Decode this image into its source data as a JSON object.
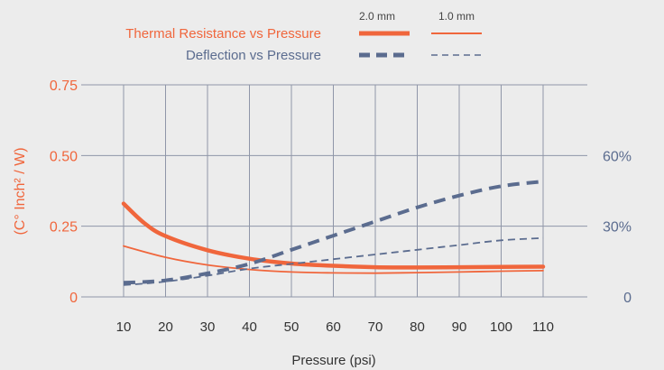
{
  "chart_data": {
    "type": "line",
    "xlabel": "Pressure (psi)",
    "ylabel": "(C° Inch² / W)",
    "x_ticks": [
      "10",
      "20",
      "30",
      "40",
      "50",
      "60",
      "70",
      "80",
      "90",
      "100",
      "110"
    ],
    "x_min": 0,
    "x_max": 110,
    "ylim_left": [
      0,
      0.75
    ],
    "y_ticks_left": [
      {
        "value": 0,
        "label": "0"
      },
      {
        "value": 0.25,
        "label": "0.25"
      },
      {
        "value": 0.5,
        "label": "0.50"
      },
      {
        "value": 0.75,
        "label": "0.75"
      }
    ],
    "ylim_right": [
      0,
      0.9
    ],
    "y_ticks_right": [
      {
        "value": 0,
        "label": "0"
      },
      {
        "value": 0.3,
        "label": "30%"
      },
      {
        "value": 0.6,
        "label": "60%"
      }
    ],
    "grid": true,
    "legend": {
      "placement": "top",
      "col_headers": [
        "2.0 mm",
        "1.0 mm"
      ],
      "rows": [
        {
          "label": "Thermal Resistance vs Pressure",
          "color": "#f0663c"
        },
        {
          "label": "Deflection vs Pressure",
          "color": "#5b6c8f"
        }
      ]
    },
    "series": [
      {
        "group": "Thermal Resistance vs Pressure",
        "thickness": "2.0 mm",
        "axis": "left",
        "color": "#f0663c",
        "dash": false,
        "x": [
          10,
          15,
          20,
          30,
          40,
          50,
          60,
          70,
          80,
          90,
          100,
          110
        ],
        "y": [
          0.33,
          0.26,
          0.215,
          0.165,
          0.135,
          0.118,
          0.11,
          0.105,
          0.104,
          0.105,
          0.106,
          0.107
        ]
      },
      {
        "group": "Thermal Resistance vs Pressure",
        "thickness": "1.0 mm",
        "axis": "left",
        "color": "#f0663c",
        "dash": false,
        "x": [
          10,
          20,
          30,
          40,
          50,
          60,
          70,
          80,
          90,
          100,
          110
        ],
        "y": [
          0.18,
          0.14,
          0.113,
          0.097,
          0.088,
          0.085,
          0.084,
          0.086,
          0.088,
          0.091,
          0.093
        ]
      },
      {
        "group": "Deflection vs Pressure",
        "thickness": "2.0 mm",
        "axis": "right",
        "color": "#5b6c8f",
        "dash": true,
        "x": [
          10,
          20,
          30,
          40,
          50,
          60,
          70,
          80,
          90,
          100,
          110
        ],
        "y": [
          0.06,
          0.07,
          0.1,
          0.14,
          0.2,
          0.26,
          0.32,
          0.38,
          0.43,
          0.47,
          0.49
        ]
      },
      {
        "group": "Deflection vs Pressure",
        "thickness": "1.0 mm",
        "axis": "right",
        "color": "#5b6c8f",
        "dash": true,
        "x": [
          10,
          20,
          30,
          40,
          50,
          60,
          70,
          80,
          90,
          100,
          110
        ],
        "y": [
          0.05,
          0.065,
          0.09,
          0.12,
          0.14,
          0.16,
          0.18,
          0.2,
          0.22,
          0.24,
          0.25
        ]
      }
    ]
  }
}
